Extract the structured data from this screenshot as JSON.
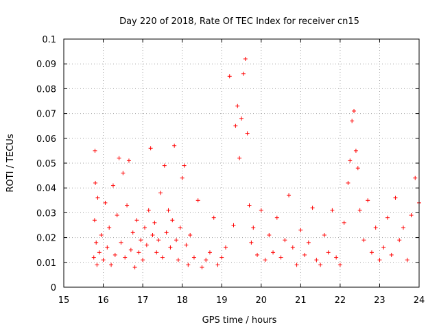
{
  "chart_data": {
    "type": "scatter",
    "title": "Day 220 of 2018, Rate Of TEC Index for receiver cn15",
    "xlabel": "GPS time / hours",
    "ylabel": "ROTI / TECUs",
    "xlim": [
      15,
      24
    ],
    "ylim": [
      0,
      0.1
    ],
    "x_ticks": [
      15,
      16,
      17,
      18,
      19,
      20,
      21,
      22,
      23,
      24
    ],
    "y_ticks": [
      0,
      0.01,
      0.02,
      0.03,
      0.04,
      0.05,
      0.06,
      0.07,
      0.08,
      0.09,
      0.1
    ],
    "x_tick_labels": [
      "15",
      "16",
      "17",
      "18",
      "19",
      "20",
      "21",
      "22",
      "23",
      "24"
    ],
    "y_tick_labels": [
      "0",
      "0.01",
      "0.02",
      "0.03",
      "0.04",
      "0.05",
      "0.06",
      "0.07",
      "0.08",
      "0.09",
      "0.1"
    ],
    "grid": true,
    "marker": "+",
    "color": "#ff0000",
    "series": [
      {
        "name": "ROTI",
        "x": [
          15.76,
          15.78,
          15.79,
          15.8,
          15.82,
          15.84,
          15.86,
          15.9,
          15.95,
          16.0,
          16.05,
          16.1,
          16.15,
          16.2,
          16.25,
          16.3,
          16.35,
          16.4,
          16.45,
          16.5,
          16.55,
          16.6,
          16.65,
          16.7,
          16.75,
          16.8,
          16.85,
          16.9,
          16.95,
          17.0,
          17.05,
          17.1,
          17.15,
          17.2,
          17.25,
          17.3,
          17.35,
          17.4,
          17.45,
          17.5,
          17.55,
          17.6,
          17.65,
          17.7,
          17.75,
          17.8,
          17.85,
          17.9,
          17.95,
          18.0,
          18.05,
          18.1,
          18.15,
          18.2,
          18.3,
          18.4,
          18.5,
          18.6,
          18.7,
          18.8,
          18.9,
          19.0,
          19.1,
          19.2,
          19.3,
          19.35,
          19.4,
          19.45,
          19.5,
          19.55,
          19.6,
          19.65,
          19.7,
          19.75,
          19.8,
          19.9,
          20.0,
          20.1,
          20.2,
          20.3,
          20.4,
          20.5,
          20.6,
          20.7,
          20.8,
          20.9,
          21.0,
          21.1,
          21.2,
          21.3,
          21.4,
          21.5,
          21.6,
          21.7,
          21.8,
          21.9,
          22.0,
          22.1,
          22.2,
          22.25,
          22.3,
          22.35,
          22.4,
          22.45,
          22.5,
          22.6,
          22.7,
          22.8,
          22.9,
          23.0,
          23.1,
          23.2,
          23.3,
          23.4,
          23.5,
          23.6,
          23.7,
          23.8,
          23.9,
          24.0
        ],
        "y": [
          0.012,
          0.027,
          0.055,
          0.042,
          0.018,
          0.009,
          0.036,
          0.014,
          0.021,
          0.011,
          0.034,
          0.016,
          0.024,
          0.009,
          0.041,
          0.013,
          0.029,
          0.052,
          0.018,
          0.046,
          0.012,
          0.033,
          0.051,
          0.015,
          0.022,
          0.008,
          0.027,
          0.014,
          0.019,
          0.011,
          0.024,
          0.017,
          0.031,
          0.056,
          0.021,
          0.026,
          0.014,
          0.019,
          0.038,
          0.012,
          0.049,
          0.022,
          0.031,
          0.016,
          0.027,
          0.057,
          0.019,
          0.011,
          0.024,
          0.044,
          0.049,
          0.017,
          0.009,
          0.021,
          0.012,
          0.035,
          0.008,
          0.011,
          0.014,
          0.028,
          0.009,
          0.012,
          0.016,
          0.085,
          0.025,
          0.065,
          0.073,
          0.052,
          0.068,
          0.086,
          0.092,
          0.062,
          0.033,
          0.018,
          0.024,
          0.013,
          0.031,
          0.011,
          0.021,
          0.014,
          0.028,
          0.012,
          0.019,
          0.037,
          0.016,
          0.009,
          0.023,
          0.013,
          0.018,
          0.032,
          0.011,
          0.009,
          0.021,
          0.014,
          0.031,
          0.012,
          0.009,
          0.026,
          0.042,
          0.051,
          0.067,
          0.071,
          0.055,
          0.048,
          0.031,
          0.019,
          0.035,
          0.014,
          0.024,
          0.011,
          0.016,
          0.028,
          0.013,
          0.036,
          0.019,
          0.024,
          0.011,
          0.029,
          0.044,
          0.034
        ]
      }
    ]
  }
}
